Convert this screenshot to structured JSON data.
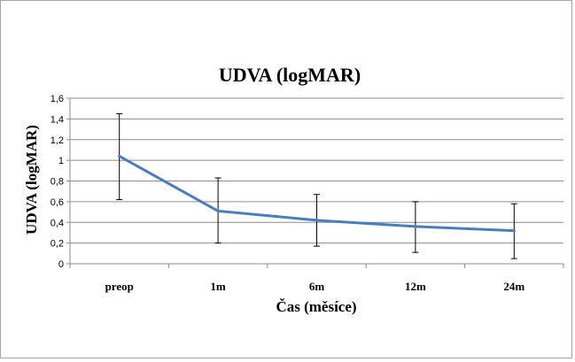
{
  "chart_data": {
    "type": "line",
    "title": "UDVA (logMAR)",
    "xlabel": "Čas (měsíce)",
    "ylabel": "UDVA (logMAR)",
    "categories": [
      "preop",
      "1m",
      "6m",
      "12m",
      "24m"
    ],
    "series": [
      {
        "values": [
          1.04,
          0.51,
          0.42,
          0.36,
          0.32
        ],
        "error_low": [
          0.62,
          0.2,
          0.17,
          0.11,
          0.05
        ],
        "error_high": [
          1.45,
          0.83,
          0.67,
          0.6,
          0.58
        ],
        "color": "#4a7ebb"
      }
    ],
    "ylim": [
      0,
      1.6
    ],
    "yticks": [
      "0",
      "0,2",
      "0,4",
      "0,6",
      "0,8",
      "1",
      "1,2",
      "1,4",
      "1,6"
    ],
    "grid": true,
    "legend": "none"
  }
}
